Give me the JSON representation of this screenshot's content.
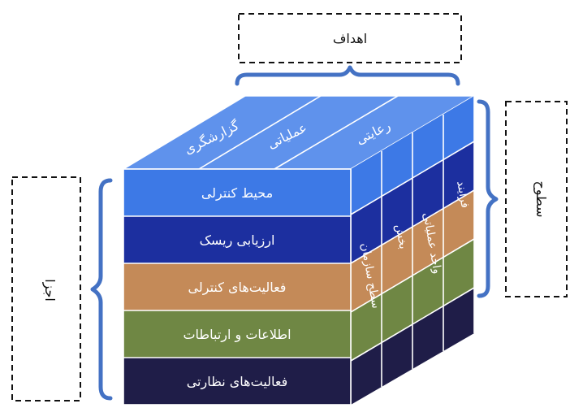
{
  "box_top": {
    "label": "اهداف"
  },
  "box_right": {
    "label": "سطوح"
  },
  "box_left": {
    "label": "اجزا"
  },
  "top_face": {
    "labels": [
      "گزارشگری",
      "عملیاتی",
      "رعایتی"
    ]
  },
  "front_face": {
    "rows": [
      {
        "label": "محیط کنترلی",
        "color": "#3d79e6"
      },
      {
        "label": "ارزیابی ریسک",
        "color": "#1c2f9f"
      },
      {
        "label": "فعالیت‌های کنترلی",
        "color": "#c48a58"
      },
      {
        "label": "اطلاعات و ارتباطات",
        "color": "#6f8744"
      },
      {
        "label": "فعالیت‌های نظارتی",
        "color": "#1f1d48"
      }
    ]
  },
  "side_face": {
    "labels": [
      "سطح سازمان",
      "بخش",
      "واحد عملیاتی",
      "فرایند"
    ]
  },
  "colors": {
    "top_face": "#5f92ec",
    "brace": "#4472c4",
    "row_blue": "#3d79e6",
    "row_navy": "#1c2f9f",
    "row_orange": "#c48a58",
    "row_green": "#6f8744",
    "row_dark": "#1f1d48"
  }
}
